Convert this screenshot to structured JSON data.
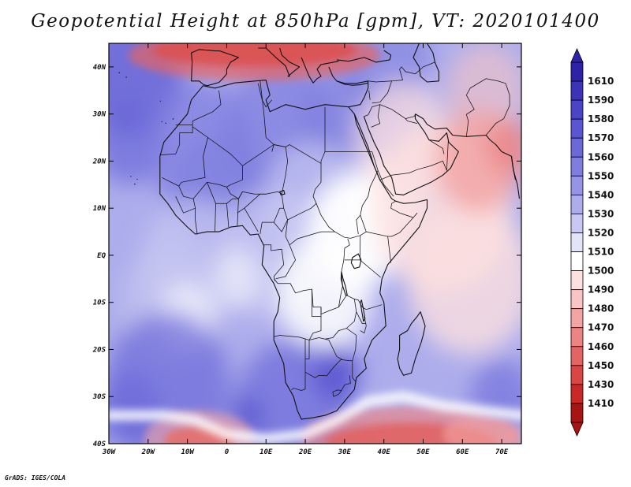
{
  "title": "Geopotential Height at 850hPa [gpm], VT: 2020101400",
  "credit": "GrADS: IGES/COLA",
  "map": {
    "lon_range": [
      -30,
      75
    ],
    "lat_range": [
      -40,
      45
    ],
    "lon_ticks": [
      {
        "value": -30,
        "label": "30W"
      },
      {
        "value": -20,
        "label": "20W"
      },
      {
        "value": -10,
        "label": "10W"
      },
      {
        "value": 0,
        "label": "0"
      },
      {
        "value": 10,
        "label": "10E"
      },
      {
        "value": 20,
        "label": "20E"
      },
      {
        "value": 30,
        "label": "30E"
      },
      {
        "value": 40,
        "label": "40E"
      },
      {
        "value": 50,
        "label": "50E"
      },
      {
        "value": 60,
        "label": "60E"
      },
      {
        "value": 70,
        "label": "70E"
      }
    ],
    "lat_ticks": [
      {
        "value": 40,
        "label": "40N"
      },
      {
        "value": 30,
        "label": "30N"
      },
      {
        "value": 20,
        "label": "20N"
      },
      {
        "value": 10,
        "label": "10N"
      },
      {
        "value": 0,
        "label": "EQ"
      },
      {
        "value": -10,
        "label": "10S"
      },
      {
        "value": -20,
        "label": "20S"
      },
      {
        "value": -30,
        "label": "30S"
      },
      {
        "value": -40,
        "label": "40S"
      }
    ]
  },
  "colorbar": {
    "levels": [
      {
        "label": "1610",
        "color": "#2e22a8"
      },
      {
        "label": "1590",
        "color": "#3c34b8"
      },
      {
        "label": "1580",
        "color": "#4a44c6"
      },
      {
        "label": "1570",
        "color": "#5a55d0"
      },
      {
        "label": "1560",
        "color": "#6b68d8"
      },
      {
        "label": "1550",
        "color": "#7f7ee0"
      },
      {
        "label": "1540",
        "color": "#9594e6"
      },
      {
        "label": "1530",
        "color": "#adadec"
      },
      {
        "label": "1520",
        "color": "#c8c8f2"
      },
      {
        "label": "1510",
        "color": "#e4e4f8"
      },
      {
        "label": "1500",
        "color": "#ffffff"
      },
      {
        "label": "1490",
        "color": "#fde0e0"
      },
      {
        "label": "1480",
        "color": "#f9c4c4"
      },
      {
        "label": "1470",
        "color": "#f3a4a4"
      },
      {
        "label": "1460",
        "color": "#ec8484"
      },
      {
        "label": "1450",
        "color": "#e36464"
      },
      {
        "label": "1430",
        "color": "#d84646"
      },
      {
        "label": "1410",
        "color": "#c82828"
      },
      {
        "label": "",
        "color": "#a81414"
      }
    ]
  },
  "field": [
    {
      "lon": -24,
      "lat": 38,
      "r": 13,
      "level": 1560,
      "o": 0.9
    },
    {
      "lon": -25,
      "lat": 24,
      "r": 9,
      "level": 1560,
      "o": 0.7
    },
    {
      "lon": -7,
      "lat": 23,
      "r": 14,
      "level": 1550,
      "o": 0.7
    },
    {
      "lon": 14,
      "lat": 26,
      "r": 15,
      "level": 1550,
      "o": 0.7
    },
    {
      "lon": 28,
      "lat": 30,
      "r": 10,
      "level": 1550,
      "o": 0.6
    },
    {
      "lon": -2,
      "lat": 14,
      "r": 12,
      "level": 1550,
      "o": 0.6
    },
    {
      "lon": 40,
      "lat": 42,
      "r": 12,
      "level": 1550,
      "o": 0.6
    },
    {
      "lon": 22,
      "lat": 12,
      "r": 12,
      "level": 1520,
      "o": 0.7
    },
    {
      "lon": 12,
      "lat": 0,
      "r": 14,
      "level": 1520,
      "o": 0.7
    },
    {
      "lon": -8,
      "lat": -2,
      "r": 14,
      "level": 1520,
      "o": 0.7
    },
    {
      "lon": -15,
      "lat": -10,
      "r": 12,
      "level": 1520,
      "o": 0.6
    },
    {
      "lon": 33,
      "lat": 5,
      "r": 12,
      "level": 1500,
      "o": 0.95
    },
    {
      "lon": 25,
      "lat": -8,
      "r": 12,
      "level": 1500,
      "o": 0.85
    },
    {
      "lon": 40,
      "lat": 12,
      "r": 9,
      "level": 1500,
      "o": 0.8
    },
    {
      "lon": -10,
      "lat": -13,
      "r": 7,
      "level": 1500,
      "o": 0.6
    },
    {
      "lon": 3,
      "lat": -5,
      "r": 6,
      "level": 1500,
      "o": 0.5
    },
    {
      "lon": 55,
      "lat": 10,
      "r": 18,
      "level": 1490,
      "o": 0.85
    },
    {
      "lon": 62,
      "lat": -5,
      "r": 16,
      "level": 1490,
      "o": 0.8
    },
    {
      "lon": 45,
      "lat": 25,
      "r": 12,
      "level": 1490,
      "o": 0.7
    },
    {
      "lon": 66,
      "lat": 35,
      "r": 10,
      "level": 1480,
      "o": 0.6
    },
    {
      "lon": 64,
      "lat": 20,
      "r": 11,
      "level": 1470,
      "o": 0.85
    },
    {
      "lon": 72,
      "lat": 23,
      "r": 6,
      "level": 1460,
      "o": 0.75
    },
    {
      "lon": -15,
      "lat": -28,
      "r": 16,
      "level": 1560,
      "o": 0.7
    },
    {
      "lon": 17,
      "lat": -33,
      "r": 15,
      "level": 1560,
      "o": 0.7
    },
    {
      "lon": -25,
      "lat": -33,
      "r": 8,
      "level": 1560,
      "o": 0.7
    },
    {
      "lon": 70,
      "lat": -30,
      "r": 8,
      "level": 1560,
      "o": 0.6
    },
    {
      "lon": 28,
      "lat": -25,
      "r": 6,
      "level": 1570,
      "o": 0.85
    },
    {
      "lon": 5,
      "lat": -34,
      "r": 4,
      "level": 1580,
      "o": 0.6
    }
  ],
  "red_blobs": [
    {
      "lon": 7,
      "lat": 43.5,
      "rx": 26,
      "ry": 3.5,
      "level": 1410,
      "o": 0.9
    },
    {
      "lon": 7,
      "lat": 42.5,
      "rx": 32,
      "ry": 5.5,
      "level": 1450,
      "o": 0.7
    },
    {
      "lon": -7,
      "lat": -39.5,
      "rx": 9,
      "ry": 3.5,
      "level": 1410,
      "o": 0.95
    },
    {
      "lon": -7,
      "lat": -39,
      "rx": 14,
      "ry": 6,
      "level": 1470,
      "o": 0.6
    },
    {
      "lon": 47,
      "lat": -40,
      "rx": 22,
      "ry": 4.5,
      "level": 1410,
      "o": 0.9
    },
    {
      "lon": 47,
      "lat": -39,
      "rx": 28,
      "ry": 7,
      "level": 1460,
      "o": 0.65
    },
    {
      "lon": 65,
      "lat": -38,
      "rx": 10,
      "ry": 4,
      "level": 1470,
      "o": 0.6
    }
  ],
  "white_bands": [
    {
      "points": [
        [
          -30,
          -34
        ],
        [
          -16,
          -34
        ],
        [
          -8,
          -35
        ],
        [
          0,
          -38
        ],
        [
          10,
          -39
        ],
        [
          20,
          -38
        ],
        [
          28,
          -35
        ],
        [
          36,
          -31
        ],
        [
          45,
          -30
        ],
        [
          55,
          -32
        ],
        [
          65,
          -33
        ],
        [
          75,
          -34
        ]
      ],
      "width_deg": 2.2
    }
  ]
}
